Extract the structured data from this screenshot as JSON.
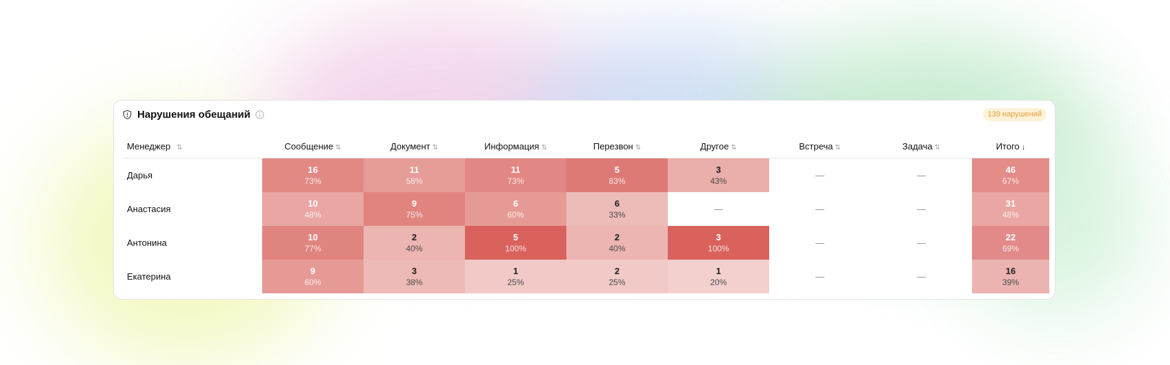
{
  "widget": {
    "title": "Нарушения обещаний",
    "badge": "139 нарушений",
    "icons": {
      "title_icon": "shield-icon",
      "info_icon": "info-icon"
    }
  },
  "table": {
    "columns": [
      {
        "label": "Менеджер",
        "sort_icon": "sort-both-icon",
        "sort_glyph": "⇅"
      },
      {
        "label": "Сообщение",
        "sort_icon": "sort-both-icon",
        "sort_glyph": "⇅"
      },
      {
        "label": "Документ",
        "sort_icon": "sort-both-icon",
        "sort_glyph": "⇅"
      },
      {
        "label": "Информация",
        "sort_icon": "sort-both-icon",
        "sort_glyph": "⇅"
      },
      {
        "label": "Перезвон",
        "sort_icon": "sort-both-icon",
        "sort_glyph": "⇅"
      },
      {
        "label": "Другое",
        "sort_icon": "sort-both-icon",
        "sort_glyph": "⇅"
      },
      {
        "label": "Встреча",
        "sort_icon": "sort-both-icon",
        "sort_glyph": "⇅"
      },
      {
        "label": "Задача",
        "sort_icon": "sort-both-icon",
        "sort_glyph": "⇅"
      },
      {
        "label": "Итого",
        "sort_icon": "sort-desc-icon",
        "sort_glyph": "↓"
      }
    ],
    "rows": [
      {
        "name": "Дарья",
        "cells": [
          {
            "count": "16",
            "percent": "73%",
            "color": "#e28984"
          },
          {
            "count": "11",
            "percent": "58%",
            "color": "#e69c97"
          },
          {
            "count": "11",
            "percent": "73%",
            "color": "#e28783"
          },
          {
            "count": "5",
            "percent": "83%",
            "color": "#de7a76"
          },
          {
            "count": "3",
            "percent": "43%",
            "color": "#eaaeab"
          },
          {
            "dash": "—"
          },
          {
            "dash": "—"
          },
          {
            "count": "46",
            "percent": "67%",
            "color": "#e38c88"
          }
        ]
      },
      {
        "name": "Анастасия",
        "cells": [
          {
            "count": "10",
            "percent": "48%",
            "color": "#e9a6a3"
          },
          {
            "count": "9",
            "percent": "75%",
            "color": "#e1847f"
          },
          {
            "count": "6",
            "percent": "60%",
            "color": "#e69a96"
          },
          {
            "count": "6",
            "percent": "33%",
            "color": "#edbcb9"
          },
          {
            "dash": "—"
          },
          {
            "dash": "—"
          },
          {
            "dash": "—"
          },
          {
            "count": "31",
            "percent": "48%",
            "color": "#e9a6a2"
          }
        ]
      },
      {
        "name": "Антонина",
        "cells": [
          {
            "count": "10",
            "percent": "77%",
            "color": "#e08480"
          },
          {
            "count": "2",
            "percent": "40%",
            "color": "#ecb5b2"
          },
          {
            "count": "5",
            "percent": "100%",
            "color": "#d9625d"
          },
          {
            "count": "2",
            "percent": "40%",
            "color": "#ecb5b2"
          },
          {
            "count": "3",
            "percent": "100%",
            "color": "#d9625d"
          },
          {
            "dash": "—"
          },
          {
            "dash": "—"
          },
          {
            "count": "22",
            "percent": "69%",
            "color": "#e2898a"
          }
        ]
      },
      {
        "name": "Екатерина",
        "cells": [
          {
            "count": "9",
            "percent": "60%",
            "color": "#e69a96"
          },
          {
            "count": "3",
            "percent": "38%",
            "color": "#edbab7"
          },
          {
            "count": "1",
            "percent": "25%",
            "color": "#f1cac8"
          },
          {
            "count": "2",
            "percent": "25%",
            "color": "#f1cac8"
          },
          {
            "count": "1",
            "percent": "20%",
            "color": "#f3d0ce"
          },
          {
            "dash": "—"
          },
          {
            "dash": "—"
          },
          {
            "count": "16",
            "percent": "39%",
            "color": "#ecb4b1"
          }
        ]
      }
    ]
  }
}
